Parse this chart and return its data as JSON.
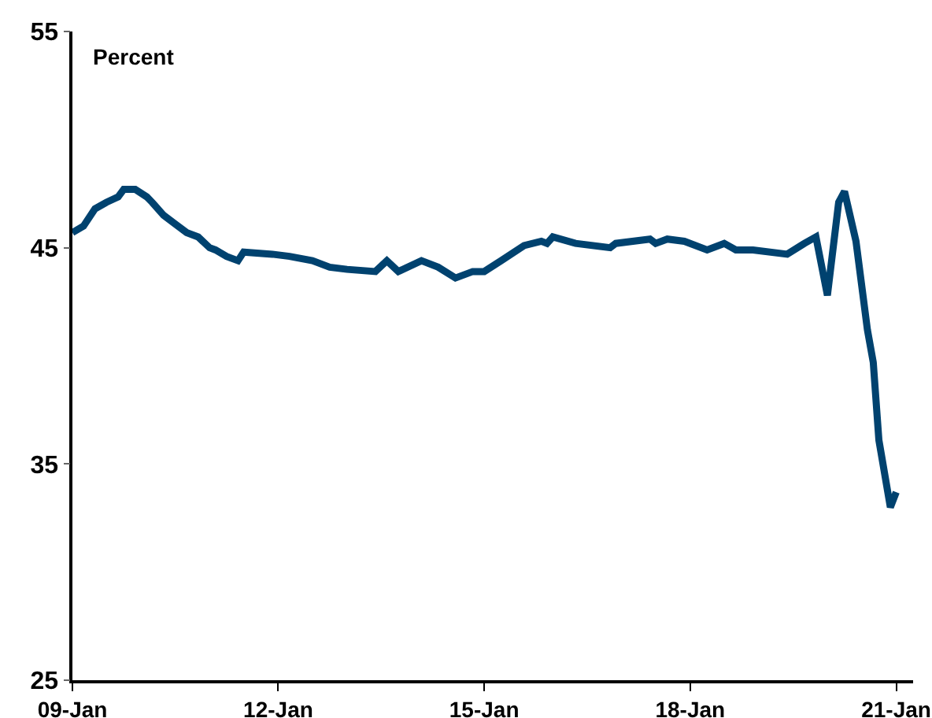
{
  "chart_data": {
    "type": "line",
    "ylabel": "Percent",
    "x": [
      "2009-01",
      "2009-03",
      "2009-05",
      "2009-07",
      "2009-09",
      "2009-10",
      "2009-12",
      "2010-02",
      "2010-03",
      "2010-05",
      "2010-07",
      "2010-09",
      "2010-11",
      "2011-01",
      "2011-02",
      "2011-04",
      "2011-06",
      "2011-07",
      "2011-12",
      "2012-03",
      "2012-07",
      "2012-10",
      "2013-01",
      "2013-06",
      "2013-08",
      "2013-10",
      "2014-02",
      "2014-05",
      "2014-08",
      "2014-11",
      "2015-01",
      "2015-04",
      "2015-08",
      "2015-11",
      "2015-12",
      "2016-01",
      "2016-05",
      "2016-11",
      "2016-12",
      "2017-06",
      "2017-07",
      "2017-09",
      "2017-12",
      "2018-04",
      "2018-07",
      "2018-09",
      "2018-12",
      "2019-06",
      "2019-09",
      "2019-11",
      "2020-01",
      "2020-03",
      "2020-04",
      "2020-06",
      "2020-08",
      "2020-09",
      "2020-10",
      "2020-12",
      "2021-01"
    ],
    "series": [
      {
        "color": "#00426f",
        "values": [
          45.7,
          46.0,
          46.8,
          47.1,
          47.35,
          47.7,
          47.7,
          47.35,
          47.1,
          46.5,
          46.1,
          45.7,
          45.5,
          45.0,
          44.9,
          44.6,
          44.4,
          44.8,
          44.7,
          44.6,
          44.4,
          44.1,
          44.0,
          43.9,
          44.4,
          43.9,
          44.4,
          44.1,
          43.6,
          43.9,
          43.9,
          44.4,
          45.1,
          45.3,
          45.2,
          45.5,
          45.2,
          45.0,
          45.2,
          45.4,
          45.2,
          45.4,
          45.3,
          44.9,
          45.2,
          44.9,
          44.9,
          44.7,
          45.2,
          45.5,
          42.8,
          47.1,
          47.6,
          45.3,
          41.2,
          39.7,
          36.1,
          33.0,
          33.7
        ]
      }
    ],
    "xlim": [
      "2009-01",
      "2021-04"
    ],
    "xticks": [
      {
        "value": "2009-01",
        "label": "09-Jan"
      },
      {
        "value": "2012-01",
        "label": "12-Jan"
      },
      {
        "value": "2015-01",
        "label": "15-Jan"
      },
      {
        "value": "2018-01",
        "label": "18-Jan"
      },
      {
        "value": "2021-01",
        "label": "21-Jan"
      }
    ],
    "ylim": [
      25,
      55
    ],
    "yticks": [
      25,
      35,
      45,
      55
    ],
    "grid": false,
    "legend": false,
    "marker": "none",
    "line_style": "solid"
  }
}
